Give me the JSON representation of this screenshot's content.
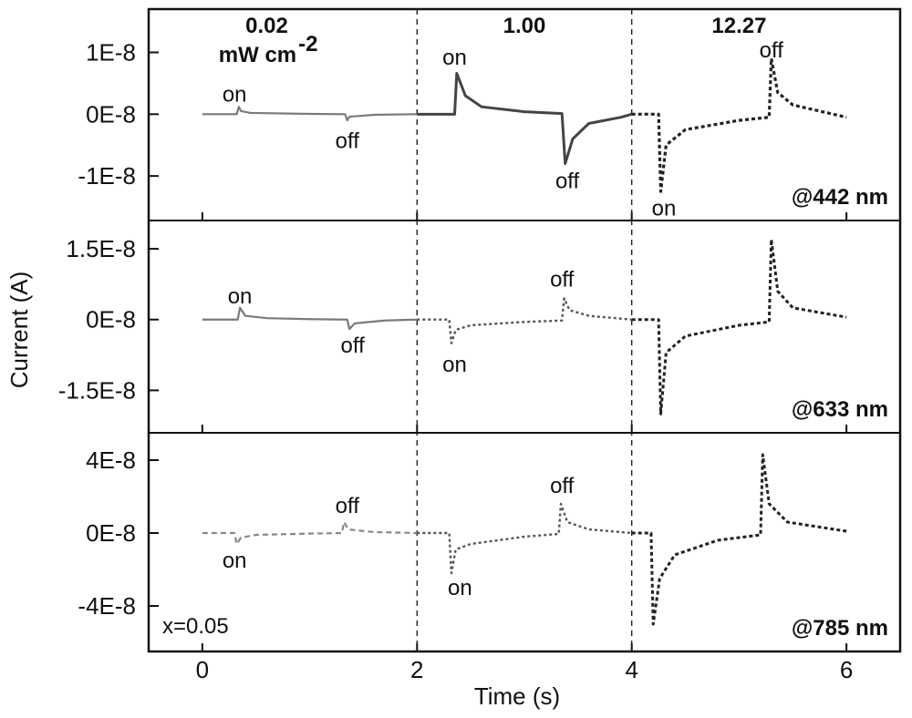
{
  "chart_data": {
    "type": "line",
    "xlabel": "Time (s)",
    "ylabel": "Current (A)",
    "xlim": [
      -0.5,
      6.5
    ],
    "xticks": [
      0,
      2,
      4,
      6
    ],
    "xtick_labels": [
      "0",
      "2",
      "4",
      "6"
    ],
    "period_dividers_x": [
      2,
      4
    ],
    "power_labels": [
      {
        "x": 0.6,
        "lines": [
          "0.02",
          "mW cm"
        ],
        "superscript": "-2"
      },
      {
        "x": 3.0,
        "lines": [
          "1.00"
        ]
      },
      {
        "x": 5.0,
        "lines": [
          "12.27"
        ]
      }
    ],
    "panels": [
      {
        "name": "@442 nm",
        "ylim": [
          -1.72e-08,
          1.7e-08
        ],
        "yticks": [
          1e-08,
          0,
          -1e-08
        ],
        "ytick_labels": [
          "1E-8",
          "0E-8",
          "-1E-8"
        ],
        "extra_label": "",
        "series": [
          {
            "stroke": "#7a7a7a",
            "width": 2.2,
            "dash": "",
            "points": [
              [
                0,
                0
              ],
              [
                0.32,
                0
              ],
              [
                0.34,
                1.2e-09
              ],
              [
                0.36,
                5e-10
              ],
              [
                0.45,
                2e-10
              ],
              [
                1.0,
                5e-11
              ],
              [
                1.33,
                0
              ],
              [
                1.35,
                -1e-09
              ],
              [
                1.37,
                -4e-10
              ],
              [
                1.6,
                -1e-10
              ],
              [
                2.0,
                0
              ]
            ]
          },
          {
            "stroke": "#444444",
            "width": 3,
            "dash": "",
            "points": [
              [
                2.0,
                0
              ],
              [
                2.35,
                0
              ],
              [
                2.37,
                6.6e-09
              ],
              [
                2.45,
                3e-09
              ],
              [
                2.6,
                1.2e-09
              ],
              [
                3.0,
                4e-10
              ],
              [
                3.35,
                1e-10
              ],
              [
                3.38,
                -8e-09
              ],
              [
                3.45,
                -4e-09
              ],
              [
                3.6,
                -1.5e-09
              ],
              [
                3.9,
                -5e-10
              ],
              [
                4.0,
                0
              ]
            ]
          },
          {
            "stroke": "#222222",
            "width": 3.2,
            "dash": "4 3",
            "points": [
              [
                4.0,
                0
              ],
              [
                4.25,
                0
              ],
              [
                4.27,
                -1.25e-08
              ],
              [
                4.32,
                -5e-09
              ],
              [
                4.5,
                -2.5e-09
              ],
              [
                5.0,
                -1e-09
              ],
              [
                5.28,
                -5e-10
              ],
              [
                5.3,
                9e-09
              ],
              [
                5.36,
                3.5e-09
              ],
              [
                5.5,
                1.5e-09
              ],
              [
                6.0,
                -5e-10
              ]
            ]
          }
        ],
        "annotations": [
          {
            "text": "on",
            "x": 0.3,
            "y": 3.2e-09
          },
          {
            "text": "off",
            "x": 1.35,
            "y": -4.3e-09
          },
          {
            "text": "on",
            "x": 2.35,
            "y": 9.2e-09
          },
          {
            "text": "off",
            "x": 3.4,
            "y": -1.08e-08
          },
          {
            "text": "on",
            "x": 4.3,
            "y": -1.52e-08
          },
          {
            "text": "off",
            "x": 5.3,
            "y": 1.04e-08
          }
        ]
      },
      {
        "name": "@633 nm",
        "ylim": [
          -2.4e-08,
          2.1e-08
        ],
        "yticks": [
          1.5e-08,
          0,
          -1.5e-08
        ],
        "ytick_labels": [
          "1.5E-8",
          "0E-8",
          "-1.5E-8"
        ],
        "extra_label": "",
        "series": [
          {
            "stroke": "#7a7a7a",
            "width": 2.2,
            "dash": "",
            "points": [
              [
                0,
                0
              ],
              [
                0.33,
                0
              ],
              [
                0.35,
                2.5e-09
              ],
              [
                0.4,
                8e-10
              ],
              [
                0.6,
                3e-10
              ],
              [
                1.0,
                1e-10
              ],
              [
                1.35,
                0
              ],
              [
                1.37,
                -2e-09
              ],
              [
                1.42,
                -8e-10
              ],
              [
                1.7,
                -2e-10
              ],
              [
                2.0,
                0
              ]
            ]
          },
          {
            "stroke": "#555555",
            "width": 2.4,
            "dash": "3 3",
            "points": [
              [
                2.0,
                0
              ],
              [
                2.3,
                0
              ],
              [
                2.32,
                -5e-09
              ],
              [
                2.36,
                -2.2e-09
              ],
              [
                2.5,
                -1.2e-09
              ],
              [
                3.0,
                -5e-10
              ],
              [
                3.35,
                -2e-10
              ],
              [
                3.37,
                4.5e-09
              ],
              [
                3.42,
                2e-09
              ],
              [
                3.6,
                8e-10
              ],
              [
                4.0,
                0
              ]
            ]
          },
          {
            "stroke": "#222222",
            "width": 3,
            "dash": "4 3",
            "points": [
              [
                4.0,
                0
              ],
              [
                4.25,
                0
              ],
              [
                4.27,
                -2e-08
              ],
              [
                4.32,
                -7e-09
              ],
              [
                4.5,
                -3.5e-09
              ],
              [
                5.0,
                -1.2e-09
              ],
              [
                5.28,
                -5e-10
              ],
              [
                5.3,
                1.7e-08
              ],
              [
                5.36,
                6e-09
              ],
              [
                5.5,
                2.5e-09
              ],
              [
                6.0,
                5e-10
              ]
            ]
          }
        ],
        "annotations": [
          {
            "text": "on",
            "x": 0.35,
            "y": 5e-09
          },
          {
            "text": "off",
            "x": 1.4,
            "y": -5.5e-09
          },
          {
            "text": "on",
            "x": 2.35,
            "y": -9.5e-09
          },
          {
            "text": "off",
            "x": 3.35,
            "y": 8.5e-09
          }
        ]
      },
      {
        "name": "@785 nm",
        "ylim": [
          -6.5e-08,
          5.5e-08
        ],
        "yticks": [
          4e-08,
          0,
          -4e-08
        ],
        "ytick_labels": [
          "4E-8",
          "0E-8",
          "-4E-8"
        ],
        "extra_label": "x=0.05",
        "series": [
          {
            "stroke": "#888888",
            "width": 2.2,
            "dash": "6 4",
            "points": [
              [
                0,
                0
              ],
              [
                0.3,
                0
              ],
              [
                0.32,
                -6e-09
              ],
              [
                0.36,
                -2.5e-09
              ],
              [
                0.5,
                -1e-09
              ],
              [
                1.0,
                -3e-10
              ],
              [
                1.3,
                0
              ],
              [
                1.32,
                6e-09
              ],
              [
                1.36,
                2e-09
              ],
              [
                1.6,
                5e-10
              ],
              [
                2.0,
                0
              ]
            ]
          },
          {
            "stroke": "#555555",
            "width": 2.4,
            "dash": "3 3",
            "points": [
              [
                2.0,
                0
              ],
              [
                2.3,
                0
              ],
              [
                2.32,
                -2.2e-08
              ],
              [
                2.36,
                -9e-09
              ],
              [
                2.5,
                -6e-09
              ],
              [
                3.0,
                -2e-09
              ],
              [
                3.32,
                -5e-10
              ],
              [
                3.34,
                1.6e-08
              ],
              [
                3.4,
                6e-09
              ],
              [
                3.6,
                2e-09
              ],
              [
                4.0,
                0
              ]
            ]
          },
          {
            "stroke": "#222222",
            "width": 3,
            "dash": "4 3",
            "points": [
              [
                4.0,
                0
              ],
              [
                4.18,
                0
              ],
              [
                4.2,
                -5e-08
              ],
              [
                4.26,
                -2.5e-08
              ],
              [
                4.4,
                -1.2e-08
              ],
              [
                4.8,
                -4e-09
              ],
              [
                5.2,
                -1e-09
              ],
              [
                5.22,
                4.3e-08
              ],
              [
                5.28,
                1.6e-08
              ],
              [
                5.45,
                6e-09
              ],
              [
                6.0,
                1e-09
              ]
            ]
          }
        ],
        "annotations": [
          {
            "text": "on",
            "x": 0.3,
            "y": -1.5e-08
          },
          {
            "text": "off",
            "x": 1.35,
            "y": 1.5e-08
          },
          {
            "text": "on",
            "x": 2.4,
            "y": -3e-08
          },
          {
            "text": "off",
            "x": 3.35,
            "y": 2.6e-08
          }
        ]
      }
    ]
  }
}
